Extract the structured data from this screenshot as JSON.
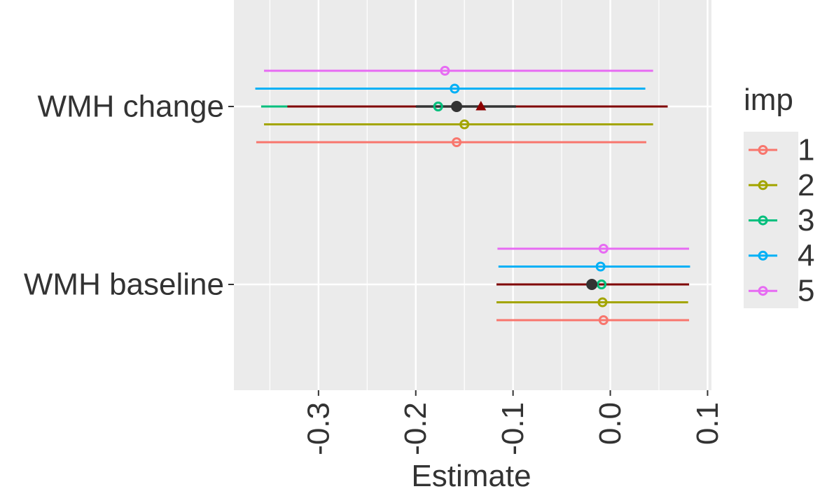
{
  "chart_data": {
    "type": "forest",
    "xlabel": "Estimate",
    "ylabel": "",
    "xlim": [
      -0.387,
      0.104
    ],
    "x_ticks": [
      -0.3,
      -0.2,
      -0.1,
      0.0,
      0.1
    ],
    "x_tick_labels": [
      "-0.3",
      "-0.2",
      "-0.1",
      "0.0",
      "0.1"
    ],
    "categories": [
      "WMH change",
      "WMH baseline"
    ],
    "grid": true,
    "legend": {
      "title": "imp",
      "position": "right",
      "entries": [
        "1",
        "2",
        "3",
        "4",
        "5"
      ]
    },
    "series": [
      {
        "name": "1",
        "color": "#F8766D",
        "estimates": [
          -0.158,
          -0.007
        ],
        "lower": [
          -0.364,
          -0.117
        ],
        "upper": [
          0.037,
          0.081
        ]
      },
      {
        "name": "2",
        "color": "#A3A500",
        "estimates": [
          -0.15,
          -0.008
        ],
        "lower": [
          -0.356,
          -0.117
        ],
        "upper": [
          0.044,
          0.08
        ]
      },
      {
        "name": "3",
        "color": "#00BF7D",
        "estimates": [
          -0.177,
          -0.009
        ],
        "lower": [
          -0.359,
          -0.117
        ],
        "upper": [
          0.038,
          0.081
        ]
      },
      {
        "name": "4",
        "color": "#00B0F6",
        "estimates": [
          -0.16,
          -0.01
        ],
        "lower": [
          -0.365,
          -0.115
        ],
        "upper": [
          0.036,
          0.082
        ]
      },
      {
        "name": "5",
        "color": "#E76BF3",
        "estimates": [
          -0.17,
          -0.007
        ],
        "lower": [
          -0.356,
          -0.116
        ],
        "upper": [
          0.044,
          0.081
        ]
      }
    ],
    "pooled": {
      "color": "#7F0000",
      "estimates": [
        -0.158,
        -0.019
      ],
      "lower": [
        -0.332,
        -0.117
      ],
      "upper": [
        0.059,
        0.081
      ],
      "inner_lower": [
        -0.2,
        null
      ],
      "inner_upper": [
        -0.097,
        null
      ],
      "inner_color": "#333333"
    },
    "reference": {
      "marker": "triangle",
      "color": "#8B0000",
      "estimates": [
        -0.133,
        null
      ]
    }
  }
}
